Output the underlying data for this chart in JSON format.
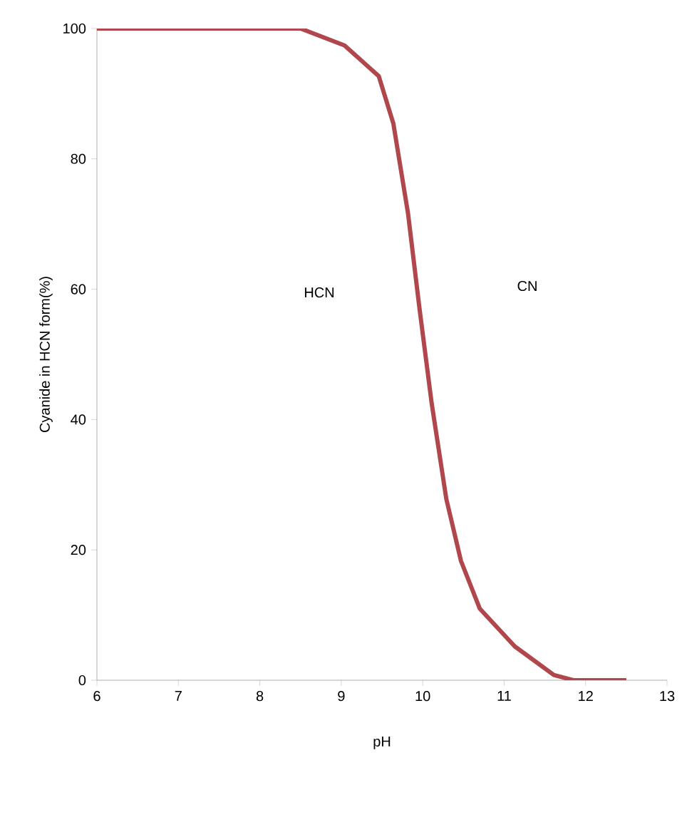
{
  "chart_data": {
    "type": "line",
    "xlabel": "pH",
    "ylabel": "Cyanide in HCN form(%)",
    "annotations": [
      "HCN",
      "CN"
    ],
    "xlim": [
      6,
      13
    ],
    "xticks": [
      6,
      7,
      8,
      9,
      10,
      11,
      12,
      13
    ],
    "ylim": [
      0,
      100
    ],
    "yticks": [
      0,
      20,
      40,
      60,
      80,
      100
    ],
    "grid": false,
    "marker": "none",
    "line_style": "solid",
    "series": [
      {
        "color": "#b0474d",
        "x": [
          6,
          7,
          8,
          8.5,
          9.04,
          9.46,
          9.64,
          9.82,
          9.96,
          10.11,
          10.29,
          10.47,
          10.7,
          11.13,
          11.61,
          11.85,
          12.5
        ],
        "values": [
          100,
          100,
          100,
          100,
          97.4,
          92.7,
          85.4,
          71.6,
          57.1,
          42.5,
          27.8,
          18.3,
          11.0,
          5.2,
          0.8,
          0,
          0
        ]
      }
    ]
  }
}
